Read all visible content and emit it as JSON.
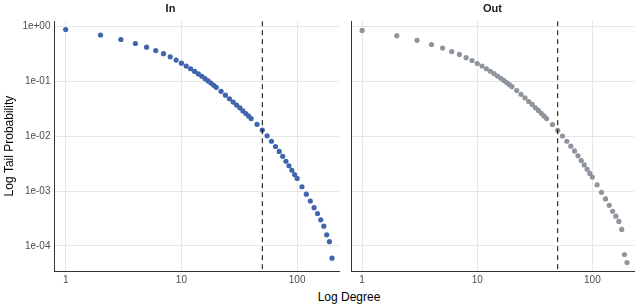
{
  "x_label": "Log Degree",
  "y_label": "Log Tail Probability",
  "chart_data": [
    {
      "type": "scatter",
      "title": "In",
      "color": "#3f65ad",
      "marker": "circle",
      "log": true,
      "grid": true,
      "xlim": [
        0.8,
        230
      ],
      "ylim": [
        3.5e-05,
        1.25
      ],
      "xticks": [
        1,
        10,
        100
      ],
      "yticks": [
        {
          "value": 1,
          "label": "1e+00"
        },
        {
          "value": 0.1,
          "label": "1e-01"
        },
        {
          "value": 0.01,
          "label": "1e-02"
        },
        {
          "value": 0.001,
          "label": "1e-03"
        },
        {
          "value": 0.0001,
          "label": "1e-04"
        }
      ],
      "annotations": [
        {
          "type": "vline",
          "x": 50,
          "line_style": "dashed"
        }
      ],
      "x": [
        1,
        2,
        3,
        4,
        5,
        6,
        7,
        8,
        9,
        10,
        11,
        12,
        13,
        14,
        15,
        16,
        17,
        18,
        19,
        20,
        22,
        24,
        26,
        28,
        30,
        32,
        34,
        36,
        38,
        40,
        45,
        50,
        55,
        60,
        65,
        70,
        75,
        80,
        85,
        90,
        95,
        100,
        110,
        120,
        130,
        140,
        150,
        160,
        170,
        180,
        190,
        200
      ],
      "values": [
        0.88,
        0.7,
        0.58,
        0.49,
        0.42,
        0.365,
        0.32,
        0.28,
        0.245,
        0.215,
        0.19,
        0.17,
        0.152,
        0.137,
        0.124,
        0.112,
        0.102,
        0.093,
        0.085,
        0.078,
        0.066,
        0.056,
        0.048,
        0.042,
        0.037,
        0.033,
        0.029,
        0.026,
        0.0235,
        0.021,
        0.0165,
        0.013,
        0.0102,
        0.0081,
        0.0065,
        0.0053,
        0.0043,
        0.0035,
        0.0029,
        0.0024,
        0.002,
        0.0017,
        0.0012,
        0.00088,
        0.00066,
        0.0005,
        0.00039,
        0.0003,
        0.00023,
        0.00016,
        0.00012,
        6e-05
      ]
    },
    {
      "type": "scatter",
      "title": "Out",
      "color": "#8f959d",
      "marker": "circle",
      "log": true,
      "grid": true,
      "tick_labels": "x",
      "xlim": [
        0.8,
        230
      ],
      "ylim": [
        3.5e-05,
        1.25
      ],
      "xticks": [
        1,
        10,
        100
      ],
      "yticks": [
        {
          "value": 1,
          "label": "1e+00"
        },
        {
          "value": 0.1,
          "label": "1e-01"
        },
        {
          "value": 0.01,
          "label": "1e-02"
        },
        {
          "value": 0.001,
          "label": "1e-03"
        },
        {
          "value": 0.0001,
          "label": "1e-04"
        }
      ],
      "annotations": [
        {
          "type": "vline",
          "x": 50,
          "line_style": "dashed"
        }
      ],
      "x": [
        1,
        2,
        3,
        4,
        5,
        6,
        7,
        8,
        9,
        10,
        11,
        12,
        13,
        14,
        15,
        16,
        17,
        18,
        19,
        20,
        22,
        24,
        26,
        28,
        30,
        32,
        34,
        36,
        38,
        40,
        45,
        50,
        55,
        60,
        65,
        70,
        75,
        80,
        85,
        90,
        95,
        100,
        110,
        120,
        130,
        140,
        150,
        160,
        170,
        180,
        190,
        200
      ],
      "values": [
        0.85,
        0.68,
        0.56,
        0.47,
        0.405,
        0.35,
        0.31,
        0.27,
        0.24,
        0.212,
        0.19,
        0.17,
        0.153,
        0.138,
        0.125,
        0.114,
        0.104,
        0.095,
        0.087,
        0.08,
        0.068,
        0.058,
        0.05,
        0.043,
        0.038,
        0.033,
        0.0295,
        0.0262,
        0.0235,
        0.021,
        0.0163,
        0.0128,
        0.0101,
        0.0081,
        0.0066,
        0.0054,
        0.0044,
        0.0036,
        0.003,
        0.0025,
        0.0021,
        0.0018,
        0.0013,
        0.00095,
        0.00072,
        0.00055,
        0.00043,
        0.00035,
        0.00028,
        0.0002,
        7e-05,
        5e-05
      ]
    }
  ]
}
